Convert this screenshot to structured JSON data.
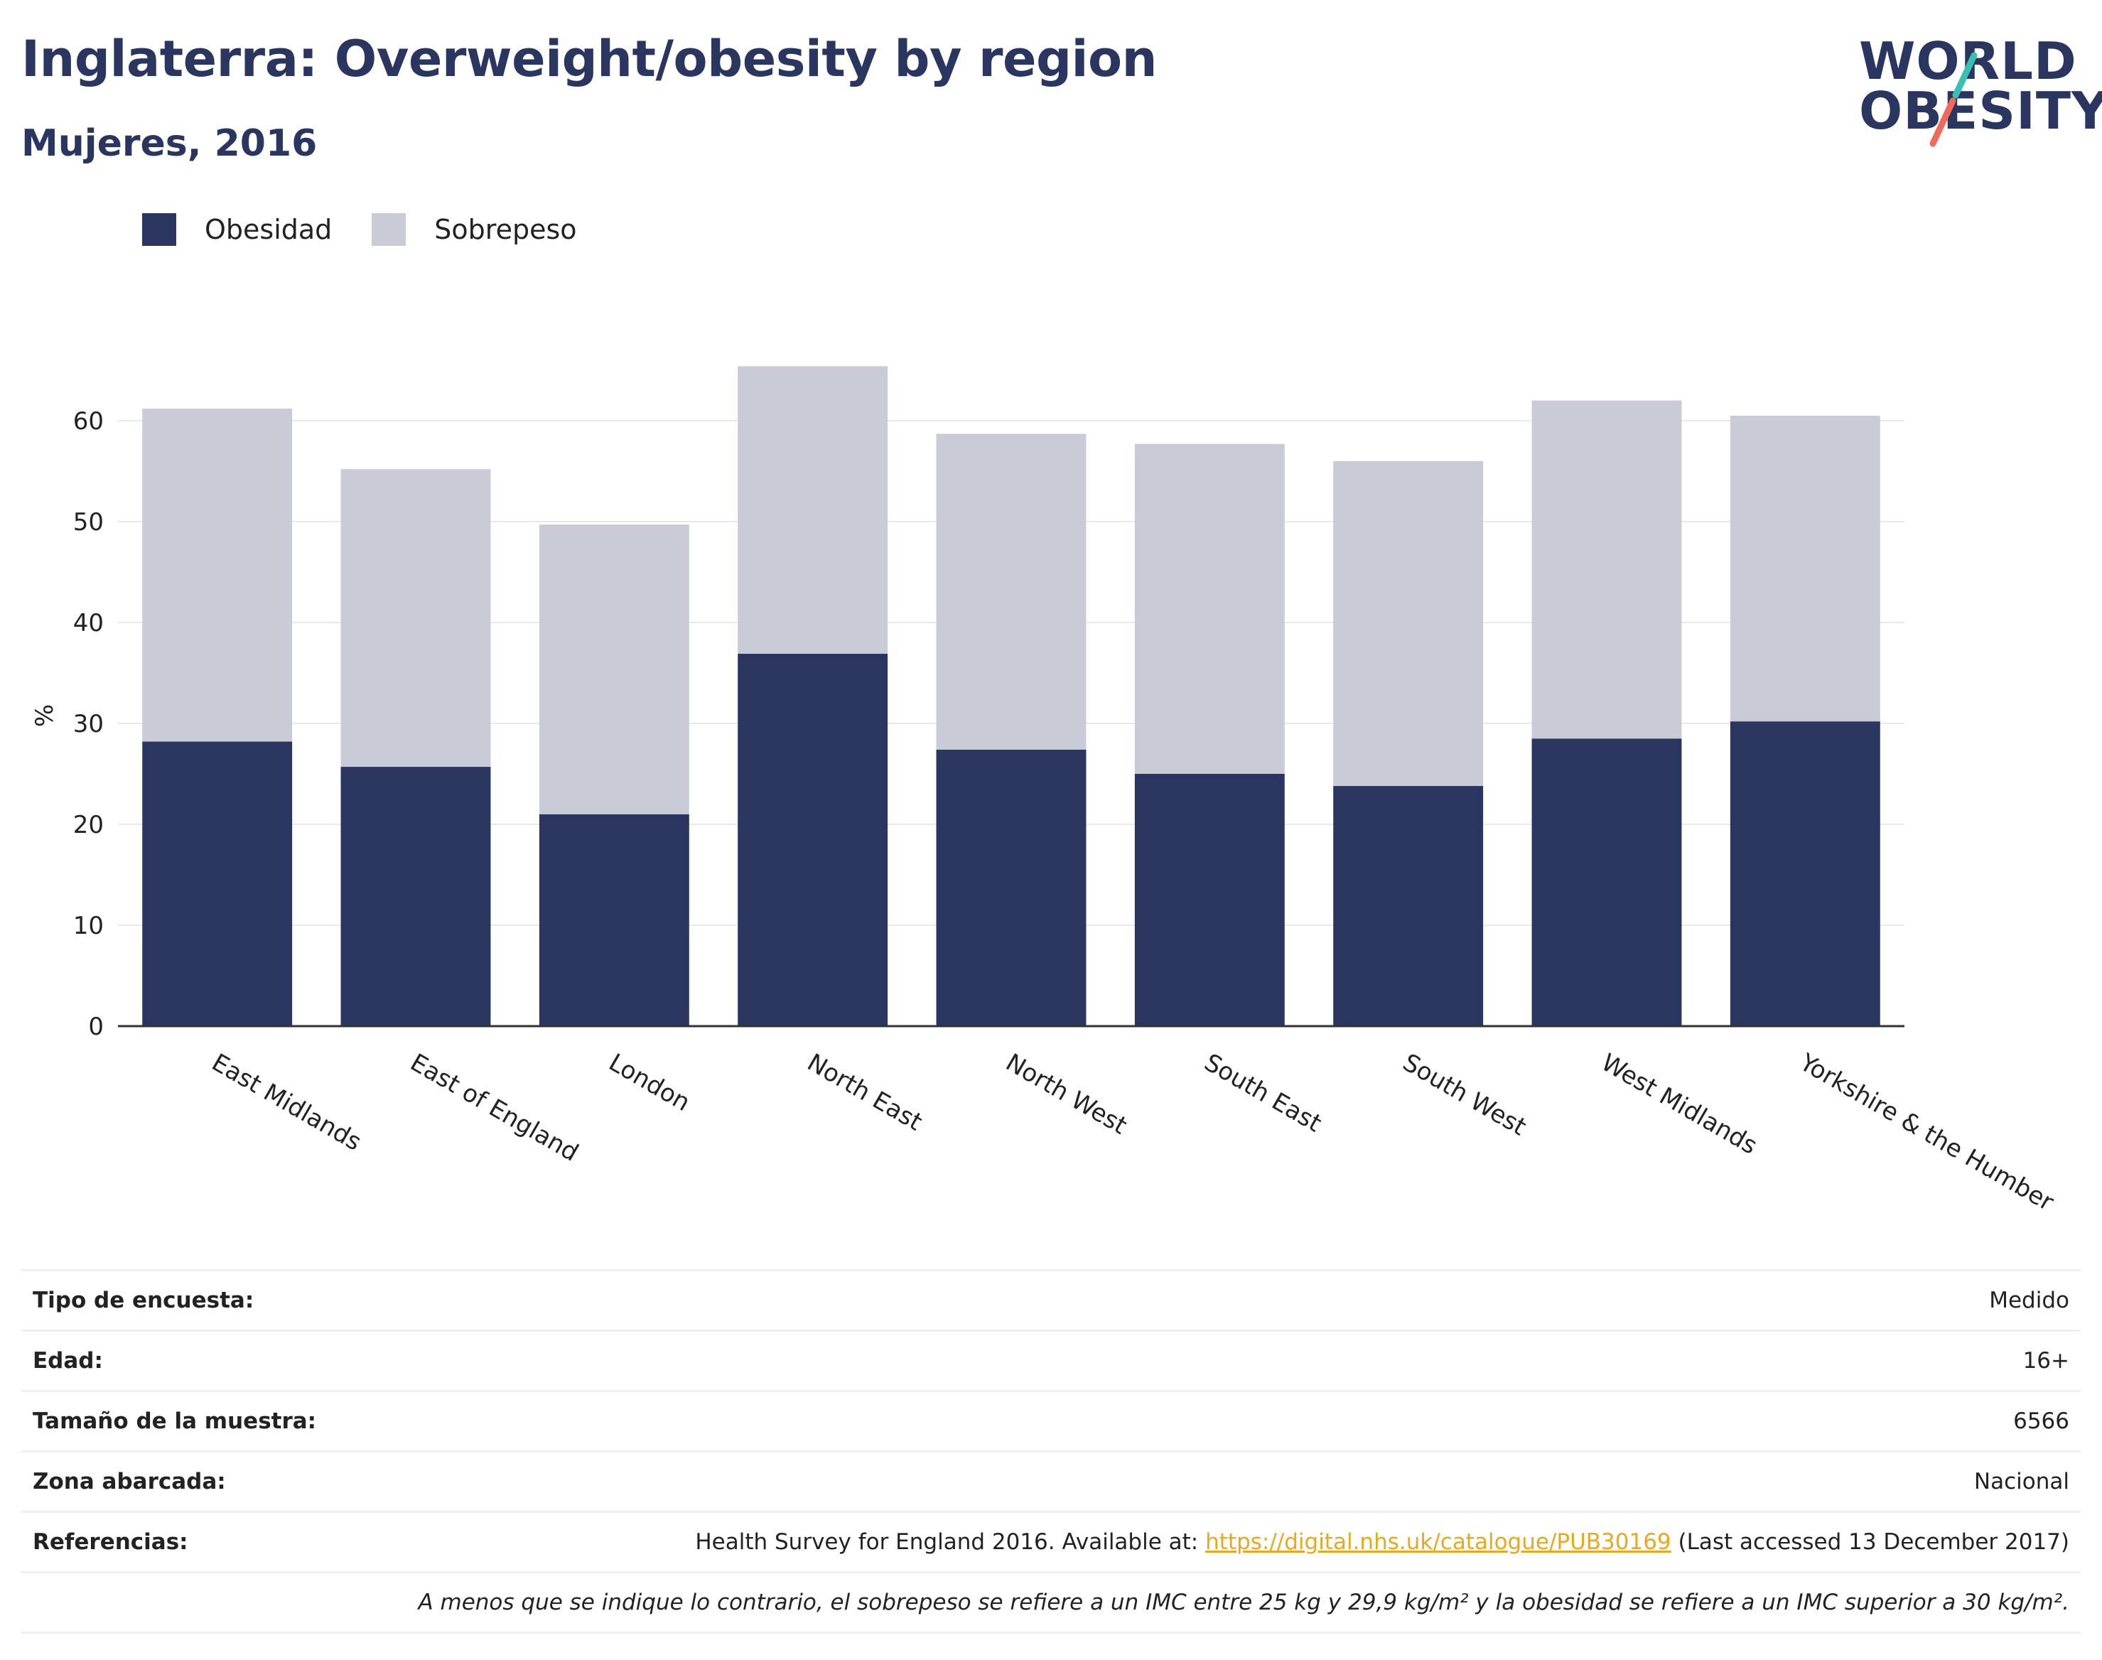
{
  "header": {
    "title": "Inglaterra: Overweight/obesity by region",
    "subtitle": "Mujeres, 2016",
    "logo_line1": "WORLD",
    "logo_line2": "OBESITY"
  },
  "colors": {
    "obesity": "#2a3560",
    "overweight": "#c9cbd6",
    "grid": "#e8e9ef",
    "axis": "#333333",
    "link": "#e8a91a",
    "logo_teal": "#3bbfb2",
    "logo_coral": "#ee6a5a"
  },
  "chart_data": {
    "type": "bar",
    "stacked": true,
    "ylabel": "%",
    "ylim": [
      0,
      70
    ],
    "yticks": [
      0,
      10,
      20,
      30,
      40,
      50,
      60
    ],
    "grid": true,
    "legend_position": "top-left",
    "categories": [
      "East Midlands",
      "East of England",
      "London",
      "North East",
      "North West",
      "South East",
      "South West",
      "West Midlands",
      "Yorkshire & the Humber"
    ],
    "series": [
      {
        "name": "Obesidad",
        "values": [
          28.2,
          25.7,
          21.0,
          36.9,
          27.4,
          25.0,
          23.8,
          28.5,
          30.2
        ]
      },
      {
        "name": "Sobrepeso",
        "values": [
          33.0,
          29.5,
          28.7,
          28.5,
          31.3,
          32.7,
          32.2,
          33.5,
          30.3
        ]
      }
    ]
  },
  "info": {
    "rows": [
      {
        "label": "Tipo de encuesta:",
        "value": "Medido"
      },
      {
        "label": "Edad:",
        "value": "16+"
      },
      {
        "label": "Tamaño de la muestra:",
        "value": "6566"
      },
      {
        "label": "Zona abarcada:",
        "value": "Nacional"
      }
    ],
    "references_label": "Referencias:",
    "references_prefix": "Health Survey for England 2016. Available at: ",
    "references_link": "https://digital.nhs.uk/catalogue/PUB30169",
    "references_suffix": " (Last accessed 13 December 2017)",
    "note": "A menos que se indique lo contrario, el sobrepeso se refiere a un IMC entre 25 kg y 29,9 kg/m² y la obesidad se refiere a un IMC superior a 30 kg/m²."
  }
}
